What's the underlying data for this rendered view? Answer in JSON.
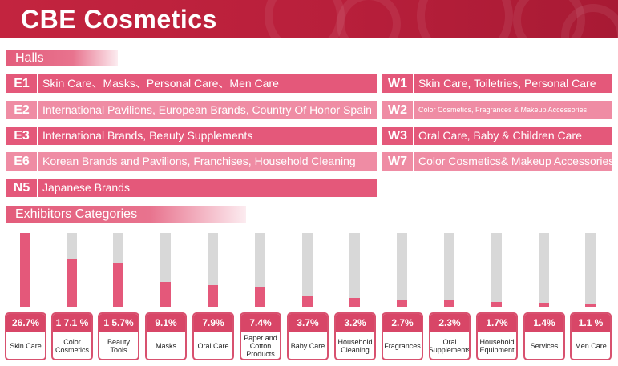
{
  "title": "CBE Cosmetics",
  "sections": {
    "halls": "Halls",
    "exhibitors": "Exhibitors Categories"
  },
  "halls": {
    "left": [
      {
        "code": "E1",
        "desc": "Skin Care、Masks、Personal Care、Men Care",
        "tone": "dark"
      },
      {
        "code": "E2",
        "desc": "International Pavilions, European Brands, Country Of Honor Spain",
        "tone": "light"
      },
      {
        "code": "E3",
        "desc": "International Brands, Beauty Supplements",
        "tone": "dark"
      },
      {
        "code": "E6",
        "desc": "Korean Brands and Pavilions, Franchises, Household Cleaning",
        "tone": "light"
      },
      {
        "code": "N5",
        "desc": "Japanese Brands",
        "tone": "dark"
      }
    ],
    "right": [
      {
        "code": "W1",
        "desc": "Skin Care, Toiletries,  Personal Care",
        "tone": "dark"
      },
      {
        "code": "W2",
        "desc": "Color Cosmetics, Fragrances & Makeup Accessories",
        "tone": "light"
      },
      {
        "code": "W3",
        "desc": "Oral Care, Baby & Children Care",
        "tone": "dark"
      },
      {
        "code": "W7",
        "desc": "Color Cosmetics& Makeup Accessories",
        "tone": "light"
      }
    ]
  },
  "categories": [
    {
      "pct": "26.7%",
      "label": "Skin Care",
      "value": 26.7
    },
    {
      "pct": "1 7.1 %",
      "label": "Color Cosmetics",
      "value": 17.1
    },
    {
      "pct": "1 5.7%",
      "label": "Beauty Tools",
      "value": 15.7
    },
    {
      "pct": "9.1%",
      "label": "Masks",
      "value": 9.1
    },
    {
      "pct": "7.9%",
      "label": "Oral Care",
      "value": 7.9
    },
    {
      "pct": "7.4%",
      "label": "Paper and Cotton Products",
      "value": 7.4
    },
    {
      "pct": "3.7%",
      "label": "Baby Care",
      "value": 3.7
    },
    {
      "pct": "3.2%",
      "label": "Household Cleaning",
      "value": 3.2
    },
    {
      "pct": "2.7%",
      "label": "Fragrances",
      "value": 2.7
    },
    {
      "pct": "2.3%",
      "label": "Oral Supplements",
      "value": 2.3
    },
    {
      "pct": "1.7%",
      "label": "Household Equipment",
      "value": 1.7
    },
    {
      "pct": "1.4%",
      "label": "Services",
      "value": 1.4
    },
    {
      "pct": "1.1 %",
      "label": "Men Care",
      "value": 1.1
    }
  ],
  "colors": {
    "brand": "#c3243f",
    "accent": "#e4587a",
    "light": "#ef8ca4",
    "track": "#d8d8d8"
  }
}
